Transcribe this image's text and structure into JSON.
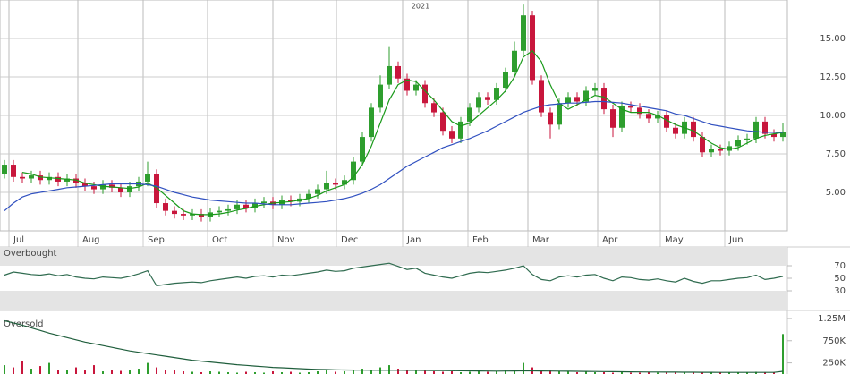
{
  "chart_data": [
    {
      "type": "candlestick",
      "annotation": "2021",
      "xlim": [
        0,
        88
      ],
      "xticks": [
        {
          "value": 1.0,
          "label": "Jul"
        },
        {
          "value": 8.7,
          "label": "Aug"
        },
        {
          "value": 16.0,
          "label": "Sep"
        },
        {
          "value": 23.2,
          "label": "Oct"
        },
        {
          "value": 30.5,
          "label": "Nov"
        },
        {
          "value": 37.6,
          "label": "Dec"
        },
        {
          "value": 45.0,
          "label": "Jan"
        },
        {
          "value": 52.3,
          "label": "Feb"
        },
        {
          "value": 59.0,
          "label": "Mar"
        },
        {
          "value": 66.8,
          "label": "Apr"
        },
        {
          "value": 73.8,
          "label": "May"
        },
        {
          "value": 81.0,
          "label": "Jun"
        }
      ],
      "ylim": [
        2.5,
        17.5
      ],
      "yticks": [
        {
          "value": 5,
          "label": "5.00"
        },
        {
          "value": 7.5,
          "label": "7.50"
        },
        {
          "value": 10,
          "label": "10.00"
        },
        {
          "value": 12.5,
          "label": "12.50"
        },
        {
          "value": 15,
          "label": "15.00"
        }
      ],
      "grid": true,
      "up_color": "#2e9e2e",
      "down_color": "#c8163c",
      "open": [
        6.2,
        6.8,
        6.0,
        5.9,
        6.1,
        5.8,
        6.0,
        5.7,
        5.9,
        5.6,
        5.4,
        5.2,
        5.5,
        5.3,
        5.0,
        5.4,
        5.7,
        6.2,
        4.3,
        3.8,
        3.6,
        3.5,
        3.6,
        3.4,
        3.7,
        3.8,
        3.9,
        4.2,
        4.0,
        4.3,
        4.4,
        4.2,
        4.5,
        4.4,
        4.6,
        4.9,
        5.2,
        5.6,
        5.5,
        5.8,
        7.0,
        8.6,
        10.5,
        12.0,
        13.2,
        12.4,
        11.6,
        12.0,
        10.8,
        10.2,
        9.0,
        8.5,
        9.6,
        10.5,
        11.2,
        11.0,
        11.8,
        12.8,
        14.2,
        16.5,
        12.3,
        10.2,
        9.4,
        10.8,
        11.2,
        10.9,
        11.6,
        11.8,
        10.4,
        9.2,
        10.6,
        10.5,
        10.1,
        9.8,
        10.0,
        9.2,
        8.8,
        9.6,
        8.6,
        7.6,
        7.8,
        7.7,
        8.0,
        8.4,
        8.5,
        9.6,
        8.8,
        8.6
      ],
      "high": [
        7.1,
        7.1,
        6.3,
        6.4,
        6.4,
        6.3,
        6.3,
        6.2,
        6.2,
        5.9,
        5.7,
        5.8,
        5.8,
        5.6,
        5.7,
        6.0,
        7.0,
        6.5,
        4.6,
        4.1,
        3.9,
        3.9,
        3.9,
        4.0,
        4.1,
        4.2,
        4.5,
        4.5,
        4.6,
        4.7,
        4.7,
        4.8,
        4.8,
        4.9,
        5.2,
        5.5,
        6.4,
        5.9,
        6.1,
        7.3,
        8.9,
        10.8,
        12.6,
        14.5,
        13.5,
        12.7,
        12.3,
        12.3,
        11.1,
        10.5,
        9.3,
        9.9,
        10.8,
        11.5,
        11.5,
        12.1,
        13.1,
        14.8,
        17.2,
        16.8,
        12.6,
        10.5,
        11.1,
        11.5,
        11.5,
        11.9,
        12.1,
        12.1,
        10.7,
        10.9,
        10.9,
        10.8,
        10.4,
        10.3,
        10.3,
        9.5,
        9.9,
        9.9,
        8.9,
        8.1,
        8.1,
        8.3,
        8.7,
        8.8,
        9.9,
        9.9,
        9.1,
        9.5
      ],
      "low": [
        5.9,
        5.7,
        5.6,
        5.6,
        5.5,
        5.5,
        5.4,
        5.4,
        5.3,
        5.1,
        4.9,
        4.9,
        5.0,
        4.7,
        4.7,
        5.1,
        5.4,
        4.0,
        3.5,
        3.3,
        3.2,
        3.2,
        3.1,
        3.1,
        3.4,
        3.5,
        3.6,
        3.7,
        3.7,
        4.0,
        3.9,
        3.9,
        4.1,
        4.1,
        4.3,
        4.6,
        4.9,
        5.2,
        5.2,
        5.5,
        6.7,
        8.3,
        10.2,
        11.7,
        12.1,
        11.3,
        11.3,
        10.5,
        9.9,
        8.7,
        8.2,
        8.2,
        9.3,
        10.2,
        10.7,
        10.7,
        11.5,
        12.5,
        13.9,
        12.0,
        9.9,
        8.5,
        9.1,
        10.5,
        10.6,
        10.6,
        11.3,
        10.1,
        8.6,
        8.9,
        10.2,
        9.8,
        9.5,
        9.5,
        8.9,
        8.5,
        8.5,
        8.3,
        7.3,
        7.3,
        7.4,
        7.4,
        7.7,
        8.1,
        8.2,
        8.5,
        8.3,
        8.3
      ],
      "close": [
        6.8,
        6.0,
        5.9,
        6.1,
        5.8,
        6.0,
        5.7,
        5.9,
        5.6,
        5.4,
        5.2,
        5.5,
        5.3,
        5.0,
        5.4,
        5.7,
        6.2,
        4.3,
        3.8,
        3.6,
        3.5,
        3.6,
        3.4,
        3.7,
        3.8,
        3.9,
        4.2,
        4.0,
        4.3,
        4.4,
        4.2,
        4.5,
        4.4,
        4.6,
        4.9,
        5.2,
        5.6,
        5.5,
        5.8,
        7.0,
        8.6,
        10.5,
        12.0,
        13.2,
        12.4,
        11.6,
        12.0,
        10.8,
        10.2,
        9.0,
        8.5,
        9.6,
        10.5,
        11.2,
        11.0,
        11.8,
        12.8,
        14.2,
        16.5,
        12.3,
        10.2,
        9.4,
        10.8,
        11.2,
        10.9,
        11.6,
        11.8,
        10.4,
        9.2,
        10.6,
        10.5,
        10.1,
        9.8,
        10.0,
        9.2,
        8.8,
        9.6,
        8.6,
        7.6,
        7.8,
        7.7,
        8.0,
        8.4,
        8.5,
        9.6,
        8.8,
        8.6,
        8.9
      ],
      "moving_averages": [
        {
          "color": "#1a9a1a",
          "values": [
            null,
            null,
            6.3,
            6.2,
            6.0,
            5.95,
            5.9,
            5.85,
            5.8,
            5.6,
            5.5,
            5.4,
            5.35,
            5.3,
            5.25,
            5.35,
            5.6,
            5.3,
            4.8,
            4.3,
            3.8,
            3.6,
            3.55,
            3.55,
            3.6,
            3.7,
            3.85,
            3.95,
            4.1,
            4.2,
            4.3,
            4.35,
            4.4,
            4.5,
            4.6,
            4.8,
            5.1,
            5.3,
            5.5,
            6.0,
            6.8,
            8.0,
            9.5,
            11.0,
            12.0,
            12.3,
            12.2,
            11.6,
            11.0,
            10.3,
            9.6,
            9.3,
            9.5,
            10.0,
            10.5,
            11.0,
            11.6,
            12.5,
            13.8,
            14.2,
            13.5,
            12.0,
            10.8,
            10.4,
            10.7,
            11.0,
            11.3,
            11.2,
            10.8,
            10.4,
            10.2,
            10.2,
            10.2,
            10.0,
            9.7,
            9.4,
            9.2,
            9.0,
            8.6,
            8.2,
            7.9,
            7.8,
            7.9,
            8.2,
            8.5,
            8.7,
            8.8,
            8.9
          ]
        },
        {
          "color": "#3050c0",
          "values": [
            3.8,
            4.3,
            4.7,
            4.9,
            5.0,
            5.1,
            5.2,
            5.3,
            5.35,
            5.4,
            5.45,
            5.5,
            5.55,
            5.55,
            5.55,
            5.55,
            5.5,
            5.4,
            5.2,
            5.0,
            4.85,
            4.7,
            4.6,
            4.5,
            4.45,
            4.4,
            4.35,
            4.3,
            4.3,
            4.25,
            4.2,
            4.2,
            4.2,
            4.25,
            4.3,
            4.35,
            4.4,
            4.5,
            4.6,
            4.75,
            4.95,
            5.2,
            5.5,
            5.9,
            6.3,
            6.7,
            7.0,
            7.3,
            7.6,
            7.9,
            8.1,
            8.3,
            8.5,
            8.75,
            9.0,
            9.3,
            9.6,
            9.9,
            10.2,
            10.4,
            10.6,
            10.7,
            10.75,
            10.8,
            10.8,
            10.85,
            10.9,
            10.9,
            10.85,
            10.8,
            10.7,
            10.6,
            10.5,
            10.4,
            10.3,
            10.1,
            10.0,
            9.8,
            9.6,
            9.4,
            9.3,
            9.2,
            9.1,
            9.0,
            8.95,
            8.9,
            8.9,
            8.9
          ]
        }
      ]
    },
    {
      "type": "line",
      "ylim": [
        0,
        100
      ],
      "yticks": [
        30,
        50,
        70
      ],
      "color": "#2f6b4f",
      "zones": [
        {
          "label": "Overbought",
          "from": 70,
          "to": 100
        },
        {
          "label": "Oversold",
          "from": 0,
          "to": 30
        }
      ],
      "values": [
        55,
        60,
        58,
        56,
        55,
        57,
        54,
        56,
        52,
        50,
        49,
        52,
        51,
        50,
        53,
        57,
        62,
        38,
        40,
        42,
        43,
        44,
        43,
        46,
        48,
        50,
        52,
        50,
        53,
        54,
        52,
        55,
        54,
        56,
        58,
        60,
        63,
        61,
        62,
        66,
        68,
        70,
        72,
        74,
        69,
        64,
        66,
        58,
        55,
        52,
        50,
        54,
        58,
        60,
        59,
        61,
        63,
        66,
        70,
        56,
        48,
        46,
        52,
        54,
        52,
        55,
        56,
        50,
        46,
        52,
        51,
        48,
        47,
        49,
        46,
        44,
        50,
        45,
        42,
        46,
        46,
        48,
        50,
        51,
        55,
        48,
        50,
        53
      ]
    },
    {
      "type": "bar",
      "ylim": [
        0,
        1430000
      ],
      "yticks": [
        {
          "value": 250000,
          "label": "250K"
        },
        {
          "value": 750000,
          "label": "750K"
        },
        {
          "value": 1250000,
          "label": "1.25M"
        }
      ],
      "average_color": "#1f5e3c",
      "values": [
        200000,
        150000,
        300000,
        120000,
        180000,
        250000,
        100000,
        90000,
        150000,
        80000,
        200000,
        60000,
        100000,
        70000,
        80000,
        120000,
        250000,
        150000,
        100000,
        80000,
        60000,
        50000,
        40000,
        60000,
        50000,
        40000,
        30000,
        50000,
        40000,
        30000,
        60000,
        40000,
        50000,
        30000,
        40000,
        60000,
        80000,
        50000,
        60000,
        80000,
        120000,
        100000,
        150000,
        200000,
        120000,
        100000,
        80000,
        70000,
        60000,
        50000,
        60000,
        40000,
        50000,
        60000,
        50000,
        70000,
        80000,
        100000,
        250000,
        150000,
        100000,
        80000,
        60000,
        50000,
        40000,
        50000,
        40000,
        40000,
        30000,
        40000,
        30000,
        30000,
        40000,
        30000,
        30000,
        40000,
        30000,
        50000,
        30000,
        40000,
        30000,
        30000,
        40000,
        30000,
        50000,
        40000,
        30000,
        900000
      ],
      "average": [
        1200000,
        1150000,
        1100000,
        1040000,
        980000,
        920000,
        870000,
        820000,
        770000,
        720000,
        680000,
        640000,
        600000,
        560000,
        520000,
        490000,
        460000,
        430000,
        400000,
        370000,
        340000,
        310000,
        290000,
        270000,
        250000,
        230000,
        210000,
        195000,
        180000,
        165000,
        150000,
        140000,
        130000,
        120000,
        110000,
        105000,
        100000,
        95000,
        90000,
        88000,
        86000,
        85000,
        84000,
        84000,
        84000,
        83000,
        82000,
        80000,
        78000,
        76000,
        74000,
        72000,
        70000,
        68000,
        66000,
        65000,
        66000,
        68000,
        72000,
        70000,
        68000,
        66000,
        64000,
        62000,
        60000,
        58000,
        56000,
        54000,
        52000,
        50000,
        48000,
        46000,
        45000,
        44000,
        43000,
        42000,
        41000,
        40000,
        39000,
        38000,
        37000,
        36000,
        36000,
        36000,
        36000,
        37000,
        37000,
        60000
      ]
    }
  ]
}
